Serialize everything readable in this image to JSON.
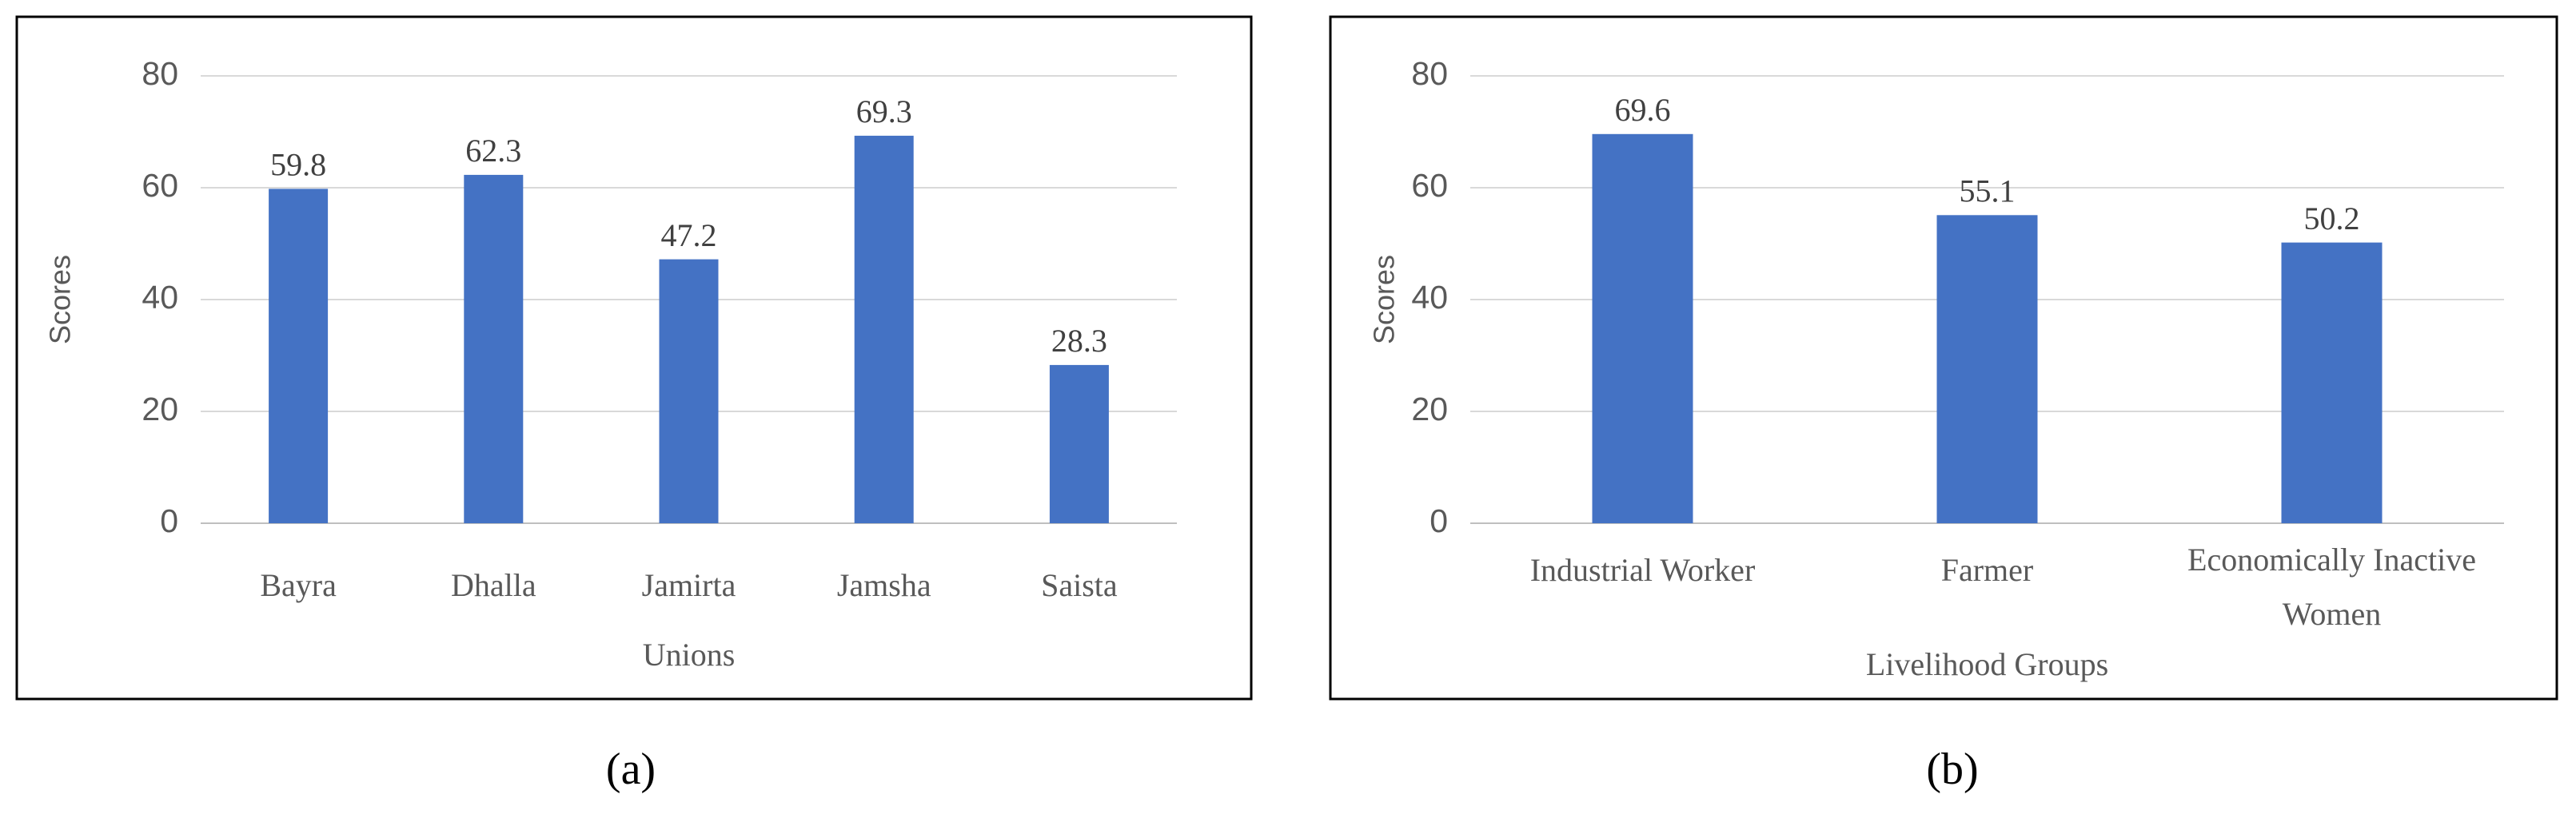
{
  "chart_data": [
    {
      "type": "bar",
      "panel_label": "(a)",
      "xlabel": "Unions",
      "ylabel": "Scores",
      "categories": [
        "Bayra",
        "Dhalla",
        "Jamirta",
        "Jamsha",
        "Saista"
      ],
      "values": [
        59.8,
        62.3,
        47.2,
        69.3,
        28.3
      ],
      "color": "#4472c4",
      "ylim": [
        0,
        80
      ],
      "yticks": [
        0,
        20,
        40,
        60,
        80
      ],
      "grid": true
    },
    {
      "type": "bar",
      "panel_label": "(b)",
      "xlabel": "Livelihood Groups",
      "ylabel": "Scores",
      "categories": [
        "Industrial Worker",
        "Farmer",
        "Economically Inactive Women"
      ],
      "values": [
        69.6,
        55.1,
        50.2
      ],
      "color": "#4472c4",
      "ylim": [
        0,
        80
      ],
      "yticks": [
        0,
        20,
        40,
        60,
        80
      ],
      "grid": true
    }
  ]
}
